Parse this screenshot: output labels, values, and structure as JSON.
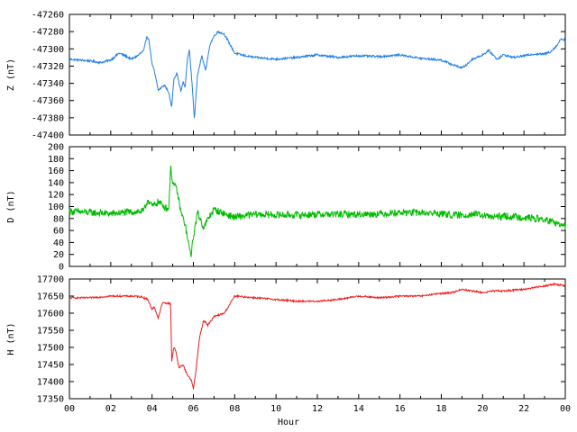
{
  "chart_data": {
    "type": "line",
    "xlabel": "Hour",
    "xlim": [
      0,
      24
    ],
    "x_ticks": [
      "00",
      "02",
      "04",
      "06",
      "08",
      "10",
      "12",
      "14",
      "16",
      "18",
      "20",
      "22",
      "00"
    ],
    "panels": [
      {
        "id": "z",
        "ylabel": "Z (nT)",
        "ylim": [
          -47400,
          -47260
        ],
        "y_ticks": [
          -47260,
          -47280,
          -47300,
          -47320,
          -47340,
          -47360,
          -47380,
          -47400
        ],
        "color": "#1f7fe6",
        "noise": 1.2,
        "series": {
          "x": [
            0,
            0.5,
            1,
            1.5,
            2,
            2.4,
            2.7,
            3,
            3.3,
            3.6,
            3.75,
            3.85,
            4,
            4.1,
            4.3,
            4.6,
            4.8,
            4.95,
            5.05,
            5.2,
            5.4,
            5.5,
            5.6,
            5.7,
            5.8,
            5.95,
            6.05,
            6.2,
            6.4,
            6.6,
            6.8,
            7,
            7.2,
            7.5,
            8,
            8.5,
            9,
            9.5,
            10,
            11,
            12,
            13,
            14,
            15,
            16,
            17,
            18,
            18.5,
            19,
            19.2,
            19.5,
            20,
            20.3,
            20.7,
            21,
            21.5,
            22,
            22.5,
            23,
            23.3,
            23.6,
            23.8,
            24
          ],
          "values": [
            -47312,
            -47313,
            -47314,
            -47316,
            -47313,
            -47305,
            -47308,
            -47312,
            -47308,
            -47302,
            -47285,
            -47290,
            -47318,
            -47325,
            -47348,
            -47342,
            -47350,
            -47368,
            -47335,
            -47328,
            -47350,
            -47338,
            -47345,
            -47315,
            -47300,
            -47345,
            -47382,
            -47330,
            -47308,
            -47325,
            -47295,
            -47285,
            -47280,
            -47283,
            -47305,
            -47308,
            -47310,
            -47311,
            -47312,
            -47310,
            -47307,
            -47310,
            -47308,
            -47309,
            -47307,
            -47311,
            -47313,
            -47318,
            -47322,
            -47319,
            -47312,
            -47307,
            -47302,
            -47312,
            -47307,
            -47310,
            -47308,
            -47306,
            -47306,
            -47303,
            -47296,
            -47288,
            -47290
          ]
        }
      },
      {
        "id": "d",
        "ylabel": "D (nT)",
        "ylim": [
          0,
          200
        ],
        "y_ticks": [
          200,
          180,
          160,
          140,
          120,
          100,
          80,
          60,
          40,
          20,
          0
        ],
        "color": "#00bb00",
        "noise": 6,
        "series": {
          "x": [
            0,
            1,
            2,
            3,
            3.6,
            3.8,
            4,
            4.3,
            4.6,
            4.8,
            4.9,
            5,
            5.2,
            5.4,
            5.6,
            5.8,
            5.9,
            6,
            6.2,
            6.5,
            6.8,
            7,
            7.5,
            8,
            9,
            10,
            11,
            12,
            13,
            14,
            15,
            16,
            17,
            18,
            18.5,
            19,
            19.5,
            20,
            20.5,
            21,
            22,
            23,
            23.5,
            24
          ],
          "values": [
            92,
            90,
            88,
            91,
            92,
            112,
            100,
            108,
            100,
            95,
            165,
            140,
            128,
            90,
            70,
            30,
            20,
            50,
            90,
            65,
            85,
            95,
            88,
            82,
            87,
            86,
            86,
            87,
            87,
            87,
            88,
            90,
            90,
            88,
            86,
            85,
            88,
            85,
            82,
            84,
            82,
            78,
            73,
            66
          ]
        }
      },
      {
        "id": "h",
        "ylabel": "H (nT)",
        "ylim": [
          17350,
          17700
        ],
        "y_ticks": [
          17700,
          17650,
          17600,
          17550,
          17500,
          17450,
          17400,
          17350
        ],
        "color": "#ee1c1c",
        "noise": 2.5,
        "series": {
          "x": [
            0,
            1,
            2,
            3,
            3.5,
            3.8,
            4,
            4.1,
            4.3,
            4.5,
            4.6,
            4.9,
            4.95,
            5.05,
            5.15,
            5.3,
            5.5,
            5.7,
            5.9,
            6,
            6.1,
            6.3,
            6.5,
            6.7,
            7,
            7.5,
            8,
            9,
            10,
            11,
            12,
            13,
            14,
            15,
            16,
            17,
            18,
            18.5,
            19,
            19.5,
            20,
            20.5,
            21,
            22,
            23,
            23.5,
            24
          ],
          "values": [
            17645,
            17645,
            17650,
            17650,
            17648,
            17640,
            17610,
            17620,
            17585,
            17630,
            17630,
            17628,
            17460,
            17500,
            17490,
            17440,
            17450,
            17420,
            17405,
            17380,
            17420,
            17530,
            17580,
            17565,
            17590,
            17600,
            17650,
            17645,
            17640,
            17635,
            17635,
            17640,
            17650,
            17645,
            17650,
            17650,
            17658,
            17660,
            17670,
            17665,
            17660,
            17665,
            17665,
            17670,
            17680,
            17685,
            17680
          ]
        }
      }
    ]
  }
}
